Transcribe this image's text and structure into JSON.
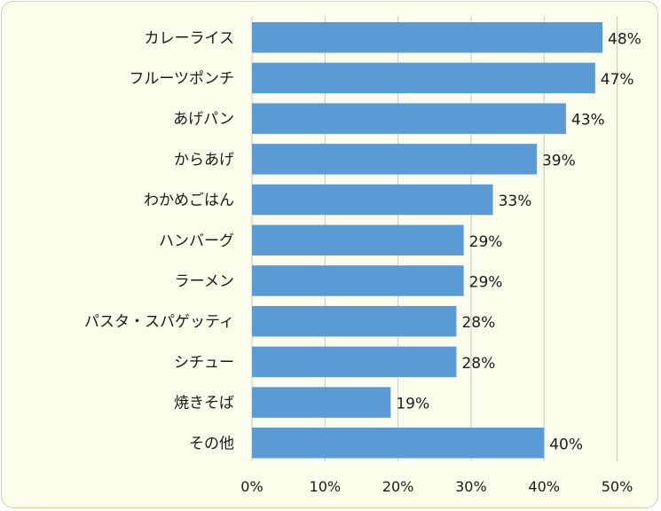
{
  "chart_data": {
    "type": "bar",
    "orientation": "horizontal",
    "categories": [
      "カレーライス",
      "フルーツポンチ",
      "あげパン",
      "からあげ",
      "わかめごはん",
      "ハンバーグ",
      "ラーメン",
      "パスタ・スパゲッティ",
      "シチュー",
      "焼きそば",
      "その他"
    ],
    "values": [
      48,
      47,
      43,
      39,
      33,
      29,
      29,
      28,
      28,
      19,
      40
    ],
    "value_labels": [
      "48%",
      "47%",
      "43%",
      "39%",
      "33%",
      "29%",
      "29%",
      "28%",
      "28%",
      "19%",
      "40%"
    ],
    "x_ticks": [
      "0%",
      "10%",
      "20%",
      "30%",
      "40%",
      "50%"
    ],
    "xlim": [
      0,
      50
    ],
    "grid": "vertical",
    "legend": "none",
    "bar_color": "#5b9bd5",
    "grid_color": "#c8c8c8",
    "background_color": "#fdfdec"
  }
}
